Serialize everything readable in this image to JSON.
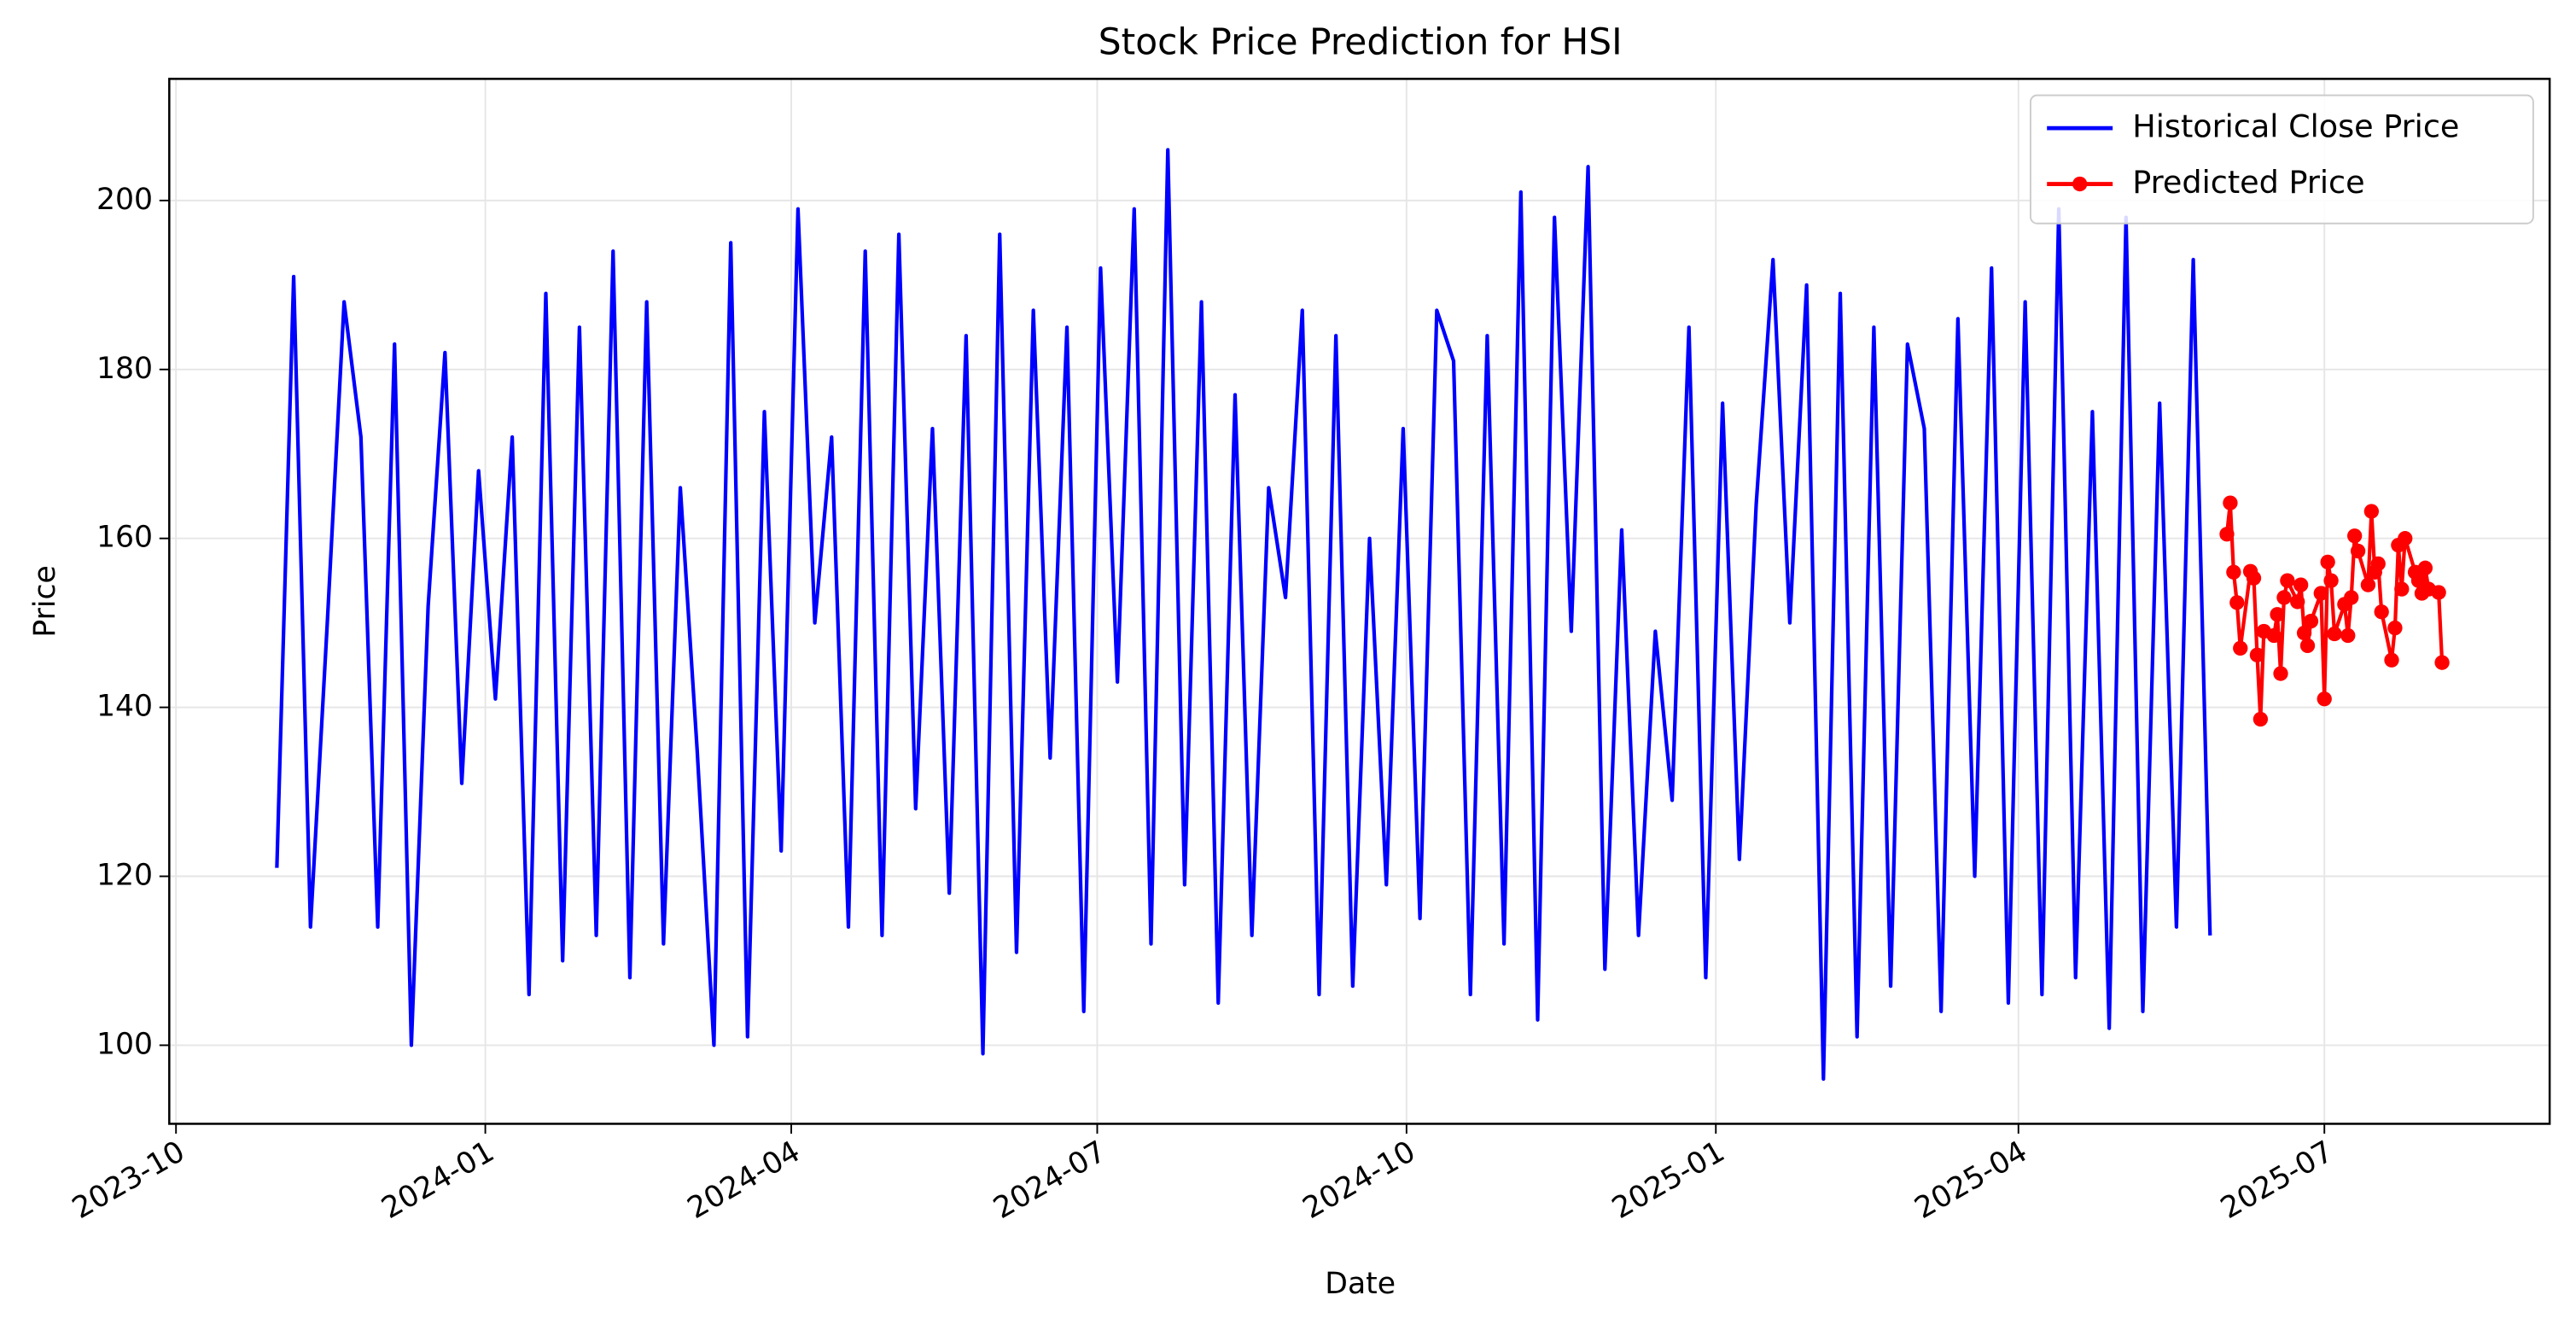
{
  "chart_data": {
    "type": "line",
    "title": "Stock Price Prediction for HSI",
    "x_label": "Date",
    "y_label": "Price",
    "xlim": [
      "2023-09-29",
      "2025-09-06"
    ],
    "xticks": [
      {
        "value": "2023-10-01",
        "label": "2023-10"
      },
      {
        "value": "2024-01-01",
        "label": "2024-01"
      },
      {
        "value": "2024-04-01",
        "label": "2024-04"
      },
      {
        "value": "2024-07-01",
        "label": "2024-07"
      },
      {
        "value": "2024-10-01",
        "label": "2024-10"
      },
      {
        "value": "2025-01-01",
        "label": "2025-01"
      },
      {
        "value": "2025-04-01",
        "label": "2025-04"
      },
      {
        "value": "2025-07-01",
        "label": "2025-07"
      }
    ],
    "ylim": [
      90.7,
      214.4
    ],
    "yticks": [
      100,
      120,
      140,
      160,
      180,
      200
    ],
    "grid": true,
    "legend": "upper right",
    "series": [
      {
        "name": "Historical Close Price",
        "color": "#0000ff",
        "marker": "none",
        "x": [
          "2023-10-31",
          "2023-11-05",
          "2023-11-10",
          "2023-11-15",
          "2023-11-20",
          "2023-11-25",
          "2023-11-30",
          "2023-12-05",
          "2023-12-10",
          "2023-12-15",
          "2023-12-20",
          "2023-12-25",
          "2023-12-30",
          "2024-01-04",
          "2024-01-09",
          "2024-01-14",
          "2024-01-19",
          "2024-01-24",
          "2024-01-29",
          "2024-02-03",
          "2024-02-08",
          "2024-02-13",
          "2024-02-18",
          "2024-02-23",
          "2024-02-28",
          "2024-03-04",
          "2024-03-09",
          "2024-03-14",
          "2024-03-19",
          "2024-03-24",
          "2024-03-29",
          "2024-04-03",
          "2024-04-08",
          "2024-04-13",
          "2024-04-18",
          "2024-04-23",
          "2024-04-28",
          "2024-05-03",
          "2024-05-08",
          "2024-05-13",
          "2024-05-18",
          "2024-05-23",
          "2024-05-28",
          "2024-06-02",
          "2024-06-07",
          "2024-06-12",
          "2024-06-17",
          "2024-06-22",
          "2024-06-27",
          "2024-07-02",
          "2024-07-07",
          "2024-07-12",
          "2024-07-17",
          "2024-07-22",
          "2024-07-27",
          "2024-08-01",
          "2024-08-06",
          "2024-08-11",
          "2024-08-16",
          "2024-08-21",
          "2024-08-26",
          "2024-08-31",
          "2024-09-05",
          "2024-09-10",
          "2024-09-15",
          "2024-09-20",
          "2024-09-25",
          "2024-09-30",
          "2024-10-05",
          "2024-10-10",
          "2024-10-15",
          "2024-10-20",
          "2024-10-25",
          "2024-10-30",
          "2024-11-04",
          "2024-11-09",
          "2024-11-14",
          "2024-11-19",
          "2024-11-24",
          "2024-11-29",
          "2024-12-04",
          "2024-12-09",
          "2024-12-14",
          "2024-12-19",
          "2024-12-24",
          "2024-12-29",
          "2025-01-03",
          "2025-01-08",
          "2025-01-13",
          "2025-01-18",
          "2025-01-23",
          "2025-01-28",
          "2025-02-02",
          "2025-02-07",
          "2025-02-12",
          "2025-02-17",
          "2025-02-22",
          "2025-02-27",
          "2025-03-04",
          "2025-03-09",
          "2025-03-14",
          "2025-03-19",
          "2025-03-24",
          "2025-03-29",
          "2025-04-03",
          "2025-04-08",
          "2025-04-13",
          "2025-04-18",
          "2025-04-23",
          "2025-04-28",
          "2025-05-03",
          "2025-05-08",
          "2025-05-13",
          "2025-05-18",
          "2025-05-23",
          "2025-05-28"
        ],
        "values": [
          121,
          191,
          114,
          150,
          188,
          172,
          114,
          183,
          100,
          152,
          182,
          131,
          168,
          141,
          172,
          106,
          189,
          110,
          185,
          113,
          194,
          108,
          188,
          112,
          166,
          135,
          100,
          195,
          101,
          175,
          123,
          199,
          150,
          172,
          114,
          194,
          113,
          196,
          128,
          173,
          118,
          184,
          99,
          196,
          111,
          187,
          134,
          185,
          104,
          192,
          143,
          199,
          112,
          206,
          119,
          188,
          105,
          177,
          113,
          166,
          153,
          187,
          106,
          184,
          107,
          160,
          119,
          173,
          115,
          187,
          181,
          106,
          184,
          112,
          201,
          103,
          198,
          149,
          204,
          109,
          161,
          113,
          149,
          129,
          185,
          108,
          176,
          122,
          164,
          193,
          150,
          190,
          96,
          189,
          101,
          185,
          107,
          183,
          173,
          104,
          186,
          120,
          192,
          105,
          188,
          106,
          199,
          108,
          175,
          102,
          198,
          104,
          176,
          114,
          193,
          113
        ]
      },
      {
        "name": "Predicted Price",
        "color": "#ff0000",
        "marker": "o",
        "x": [
          "2025-06-02",
          "2025-06-03",
          "2025-06-04",
          "2025-06-05",
          "2025-06-06",
          "2025-06-09",
          "2025-06-10",
          "2025-06-11",
          "2025-06-12",
          "2025-06-13",
          "2025-06-16",
          "2025-06-17",
          "2025-06-18",
          "2025-06-19",
          "2025-06-20",
          "2025-06-23",
          "2025-06-24",
          "2025-06-25",
          "2025-06-26",
          "2025-06-27",
          "2025-06-30",
          "2025-07-01",
          "2025-07-02",
          "2025-07-03",
          "2025-07-04",
          "2025-07-07",
          "2025-07-08",
          "2025-07-09",
          "2025-07-10",
          "2025-07-11",
          "2025-07-14",
          "2025-07-15",
          "2025-07-16",
          "2025-07-17",
          "2025-07-18",
          "2025-07-21",
          "2025-07-22",
          "2025-07-23",
          "2025-07-24",
          "2025-07-25",
          "2025-07-28",
          "2025-07-29",
          "2025-07-30",
          "2025-07-31",
          "2025-08-01",
          "2025-08-04",
          "2025-08-05"
        ],
        "values": [
          160.5,
          164.2,
          156.0,
          152.4,
          147.0,
          156.1,
          155.3,
          146.2,
          138.6,
          149.0,
          148.5,
          151.0,
          144.0,
          153.0,
          155.0,
          152.5,
          154.5,
          148.8,
          147.3,
          150.2,
          153.5,
          141.0,
          157.2,
          155.0,
          148.7,
          152.2,
          148.5,
          153.0,
          160.3,
          158.5,
          154.5,
          163.2,
          156.0,
          157.0,
          151.3,
          145.6,
          149.4,
          159.2,
          154.0,
          160.0,
          156.0,
          155.0,
          153.5,
          156.5,
          154.0,
          153.6,
          145.3
        ]
      }
    ]
  }
}
